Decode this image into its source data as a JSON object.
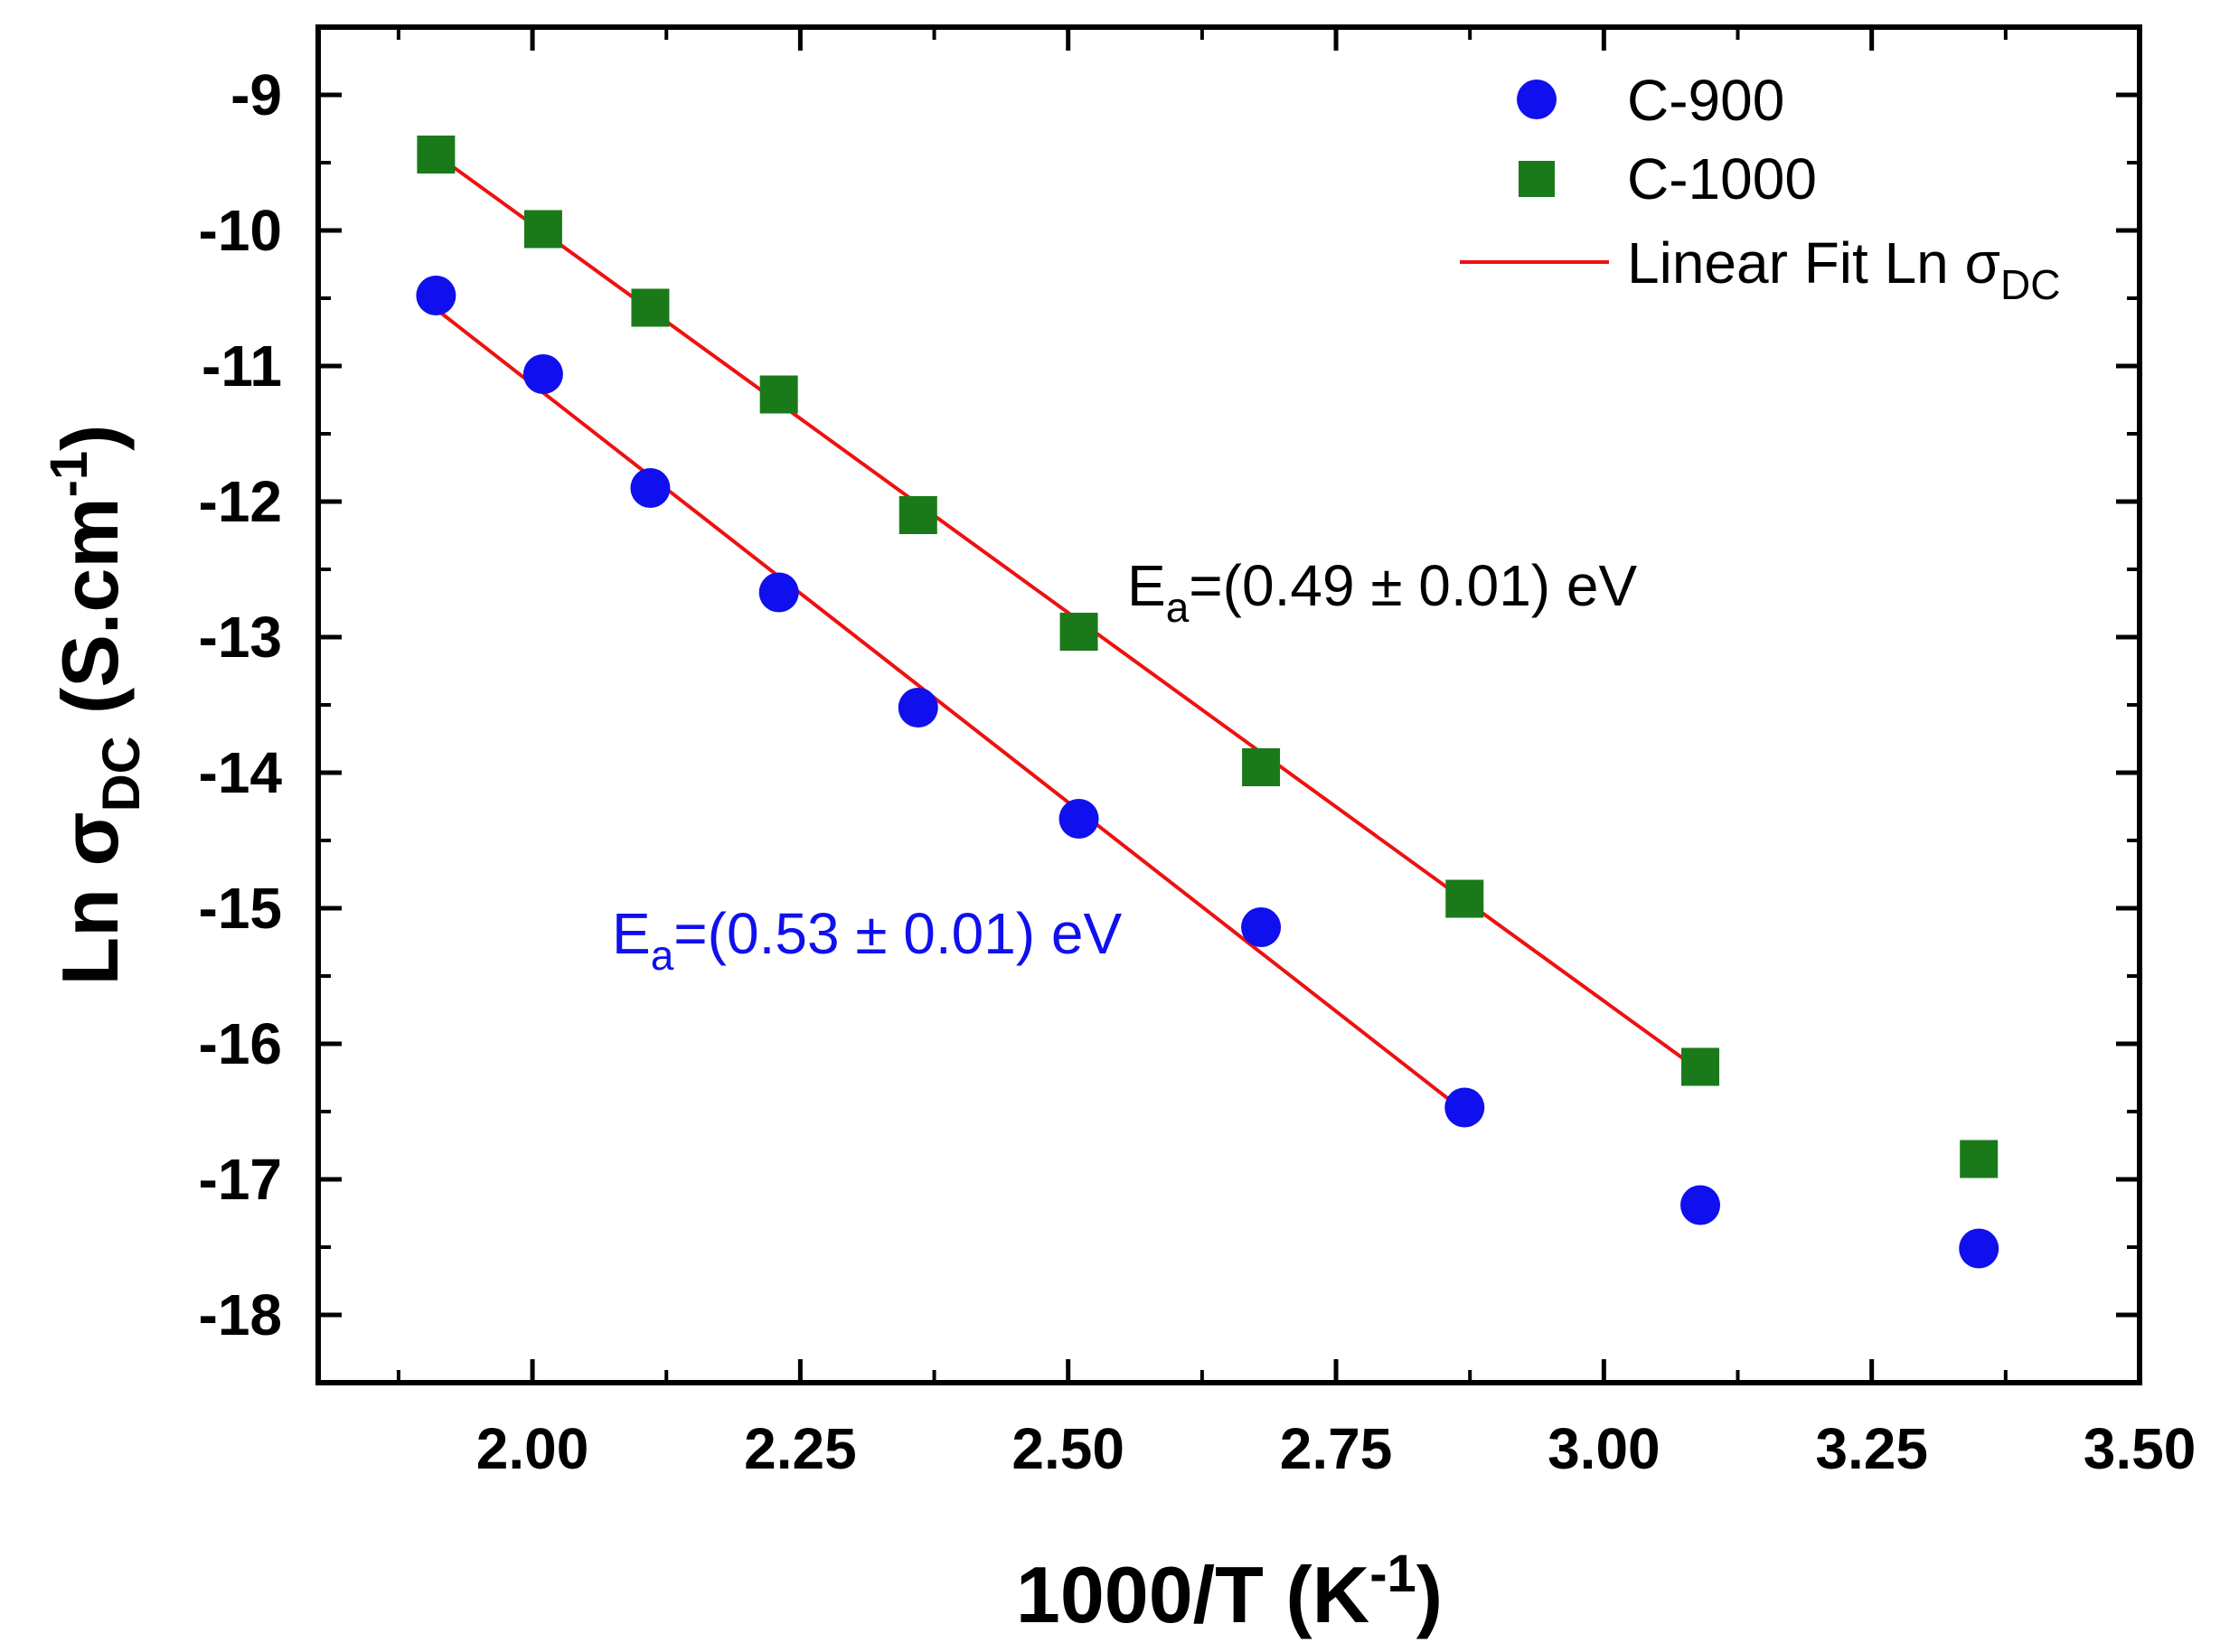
{
  "chart_data": {
    "type": "scatter",
    "xlabel": "1000/T (K",
    "xlabel_sup": "-1",
    "xlabel_close": ")",
    "ylabel_prefix": "Ln ",
    "ylabel_symbol": "σ",
    "ylabel_sub": "DC",
    "ylabel_unit": " (S.cm",
    "ylabel_sup": "-1",
    "ylabel_close": ")",
    "xlim": [
      1.8,
      3.5
    ],
    "ylim": [
      -18.5,
      -8.5
    ],
    "xticks": [
      2.0,
      2.25,
      2.5,
      2.75,
      3.0,
      3.25,
      3.5
    ],
    "xtick_labels": [
      "2.00",
      "2.25",
      "2.50",
      "2.75",
      "3.00",
      "3.25",
      "3.50"
    ],
    "yticks": [
      -9,
      -10,
      -11,
      -12,
      -13,
      -14,
      -15,
      -16,
      -17,
      -18
    ],
    "ytick_labels": [
      "-9",
      "-10",
      "-11",
      "-12",
      "-13",
      "-14",
      "-15",
      "-16",
      "-17",
      "-18"
    ],
    "series": [
      {
        "name": "C-900",
        "marker": "circle",
        "color": "#1010ee",
        "x": [
          1.91,
          2.01,
          2.11,
          2.23,
          2.36,
          2.51,
          2.68,
          2.87,
          3.09,
          3.35
        ],
        "y": [
          -10.48,
          -11.06,
          -11.9,
          -12.67,
          -13.52,
          -14.34,
          -15.14,
          -16.47,
          -17.19,
          -17.51
        ]
      },
      {
        "name": "C-1000",
        "marker": "square",
        "color": "#1a7a1a",
        "x": [
          1.91,
          2.01,
          2.11,
          2.23,
          2.36,
          2.51,
          2.68,
          2.87,
          3.09,
          3.35
        ],
        "y": [
          -9.44,
          -9.99,
          -10.57,
          -11.21,
          -12.1,
          -12.96,
          -13.96,
          -14.93,
          -16.17,
          -16.85
        ]
      }
    ],
    "fits": [
      {
        "series": "C-900",
        "color": "#ee1111",
        "x": [
          1.91,
          2.87
        ],
        "y": [
          -10.58,
          -16.5
        ]
      },
      {
        "series": "C-1000",
        "color": "#ee1111",
        "x": [
          1.91,
          3.09
        ],
        "y": [
          -9.44,
          -16.2
        ]
      }
    ],
    "legend": {
      "position": "top-right",
      "entries": [
        {
          "label": "C-900",
          "marker": "circle",
          "color": "#1010ee"
        },
        {
          "label": "C-1000",
          "marker": "square",
          "color": "#1a7a1a"
        },
        {
          "label_prefix": "Linear Fit Ln ",
          "label_symbol": "σ",
          "label_sub": "DC",
          "marker": "line",
          "color": "#ee1111"
        }
      ]
    },
    "annotations": [
      {
        "prefix": "E",
        "sub": "a",
        "text": "=(0.49 ± 0.01) eV",
        "color": "#000000"
      },
      {
        "prefix": "E",
        "sub": "a",
        "text": "=(0.53 ± 0.01) eV",
        "color": "#1010ee"
      }
    ]
  }
}
